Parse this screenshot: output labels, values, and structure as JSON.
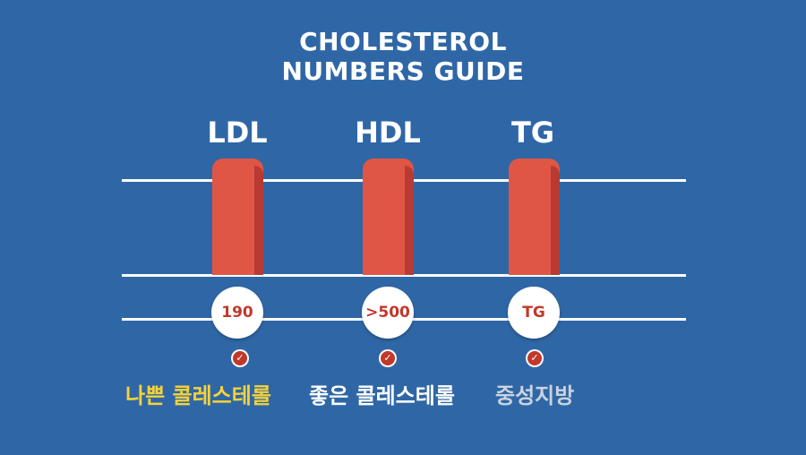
{
  "title": {
    "line1": "CHOLESTEROL",
    "line2": "NUMBERS GUIDE"
  },
  "columns": [
    {
      "label": "LDL",
      "value": "190",
      "caption": "나쁜 콜레스테롤",
      "caption_color": "#f5d23a"
    },
    {
      "label": "HDL",
      "value": ">500",
      "caption": "좋은 콜레스테롤",
      "caption_color": "#ffffff"
    },
    {
      "label": "TG",
      "value": "TG",
      "caption": "중성지방",
      "caption_color": "#c9d3e0"
    }
  ],
  "colors": {
    "background": "#2f67a6",
    "bar": "#e05645",
    "value_text": "#c0392b"
  },
  "icons": {
    "check": "check-circle-icon"
  }
}
